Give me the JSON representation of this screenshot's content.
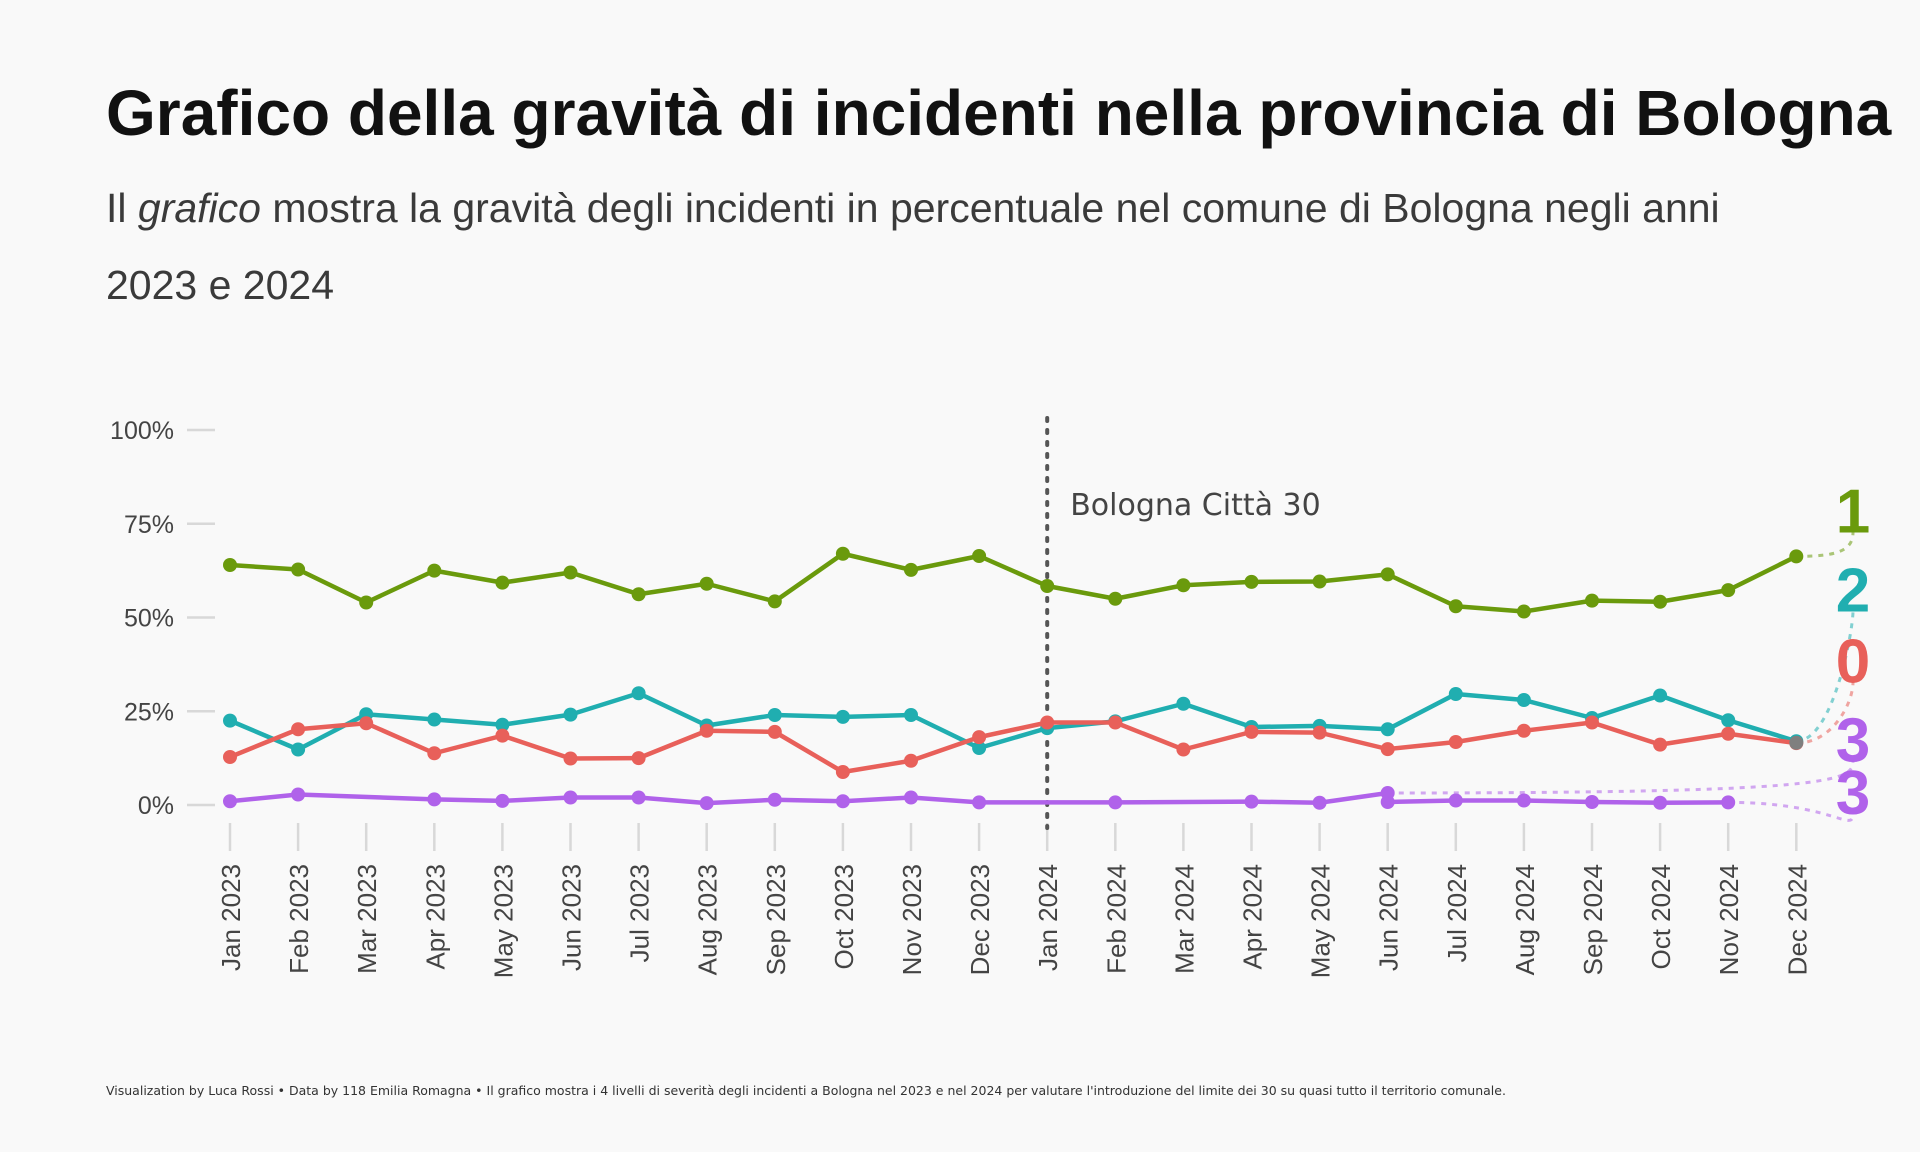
{
  "header": {
    "title": "Grafico della gravità di incidenti nella provincia di Bologna",
    "subtitle_pre": "Il ",
    "subtitle_em": "grafico",
    "subtitle_post": " mostra la gravità degli incidenti in percentuale nel comune di Bologna negli anni 2023 e 2024"
  },
  "footer": {
    "credit": "Visualization by Luca Rossi  •  Data by 118 Emilia Romagna  •  Il grafico mostra i 4 livelli di severità degli incidenti a Bologna nel 2023 e nel 2024 per valutare l'introduzione del limite dei 30 su quasi tutto il territorio comunale."
  },
  "chart_data": {
    "type": "line",
    "categories": [
      "Jan 2023",
      "Feb 2023",
      "Mar 2023",
      "Apr 2023",
      "May 2023",
      "Jun 2023",
      "Jul 2023",
      "Aug 2023",
      "Sep 2023",
      "Oct 2023",
      "Nov 2023",
      "Dec 2023",
      "Jan 2024",
      "Feb 2024",
      "Mar 2024",
      "Apr 2024",
      "May 2024",
      "Jun 2024",
      "Jul 2024",
      "Aug 2024",
      "Sep 2024",
      "Oct 2024",
      "Nov 2024",
      "Dec 2024"
    ],
    "y_ticks": [
      "0%",
      "25%",
      "50%",
      "75%",
      "100%"
    ],
    "ylim": [
      0,
      100
    ],
    "annotation": {
      "label": "Bologna Città 30",
      "at": "Jan 2024"
    },
    "series": [
      {
        "name": "1",
        "color": "#6a9a0c",
        "end_value": 78,
        "values": [
          64,
          62.8,
          54,
          62.5,
          59.3,
          62,
          56.2,
          59,
          54.3,
          67,
          62.7,
          66.4,
          58.4,
          55,
          58.6,
          59.5,
          59.6,
          61.5,
          53,
          51.6,
          54.5,
          54.2,
          57.3,
          66.3
        ]
      },
      {
        "name": "2",
        "color": "#20aeb0",
        "end_value": 57,
        "values": [
          22.5,
          14.8,
          24.2,
          22.8,
          21.4,
          24.1,
          29.8,
          21.2,
          24,
          23.5,
          24,
          15.2,
          20.5,
          22.3,
          27,
          20.8,
          21.1,
          20.2,
          29.6,
          28,
          23.2,
          29.2,
          22.6,
          17
        ]
      },
      {
        "name": "0",
        "color": "#e8605a",
        "end_value": 38,
        "values": [
          12.8,
          20.2,
          21.8,
          13.8,
          18.5,
          12.4,
          12.5,
          19.8,
          19.5,
          8.8,
          11.8,
          18.1,
          22,
          22,
          14.8,
          19.5,
          19.3,
          14.9,
          16.8,
          19.8,
          22,
          16.1,
          19,
          16.5
        ]
      },
      {
        "name": "3",
        "color": "#b062ea",
        "end_value": 17,
        "values": [
          1,
          2.8,
          null,
          1.5,
          1.1,
          2,
          2,
          0.5,
          1.4,
          1,
          2,
          0.7,
          null,
          0.7,
          null,
          0.9,
          0.6,
          3.2,
          null,
          null,
          null,
          null,
          null,
          null
        ]
      },
      {
        "name": "3",
        "color": "#b062ea",
        "end_value": 3,
        "values": [
          null,
          null,
          null,
          null,
          null,
          null,
          null,
          null,
          null,
          null,
          null,
          null,
          null,
          null,
          null,
          null,
          null,
          0.8,
          1.2,
          1.2,
          0.8,
          0.6,
          0.7,
          null
        ]
      }
    ],
    "legend": "end-of-line labels",
    "grid": false
  }
}
